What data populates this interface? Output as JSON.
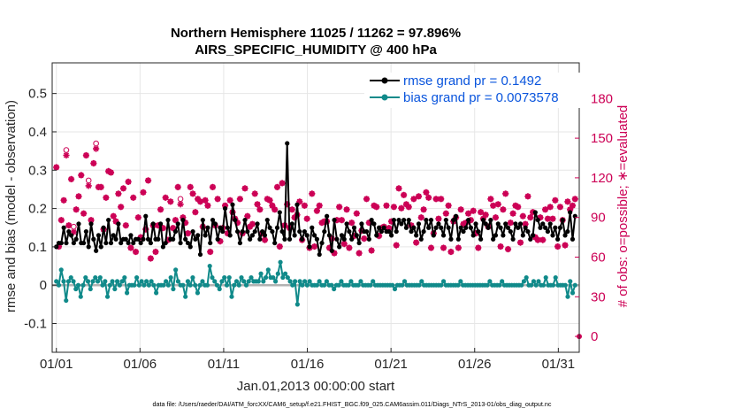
{
  "chart_data": {
    "type": "line",
    "title_line1": "Northern Hemisphere 11025 / 11262 = 97.896%",
    "title_line2": "AIRS_SPECIFIC_HUMIDITY @ 400 hPa",
    "xlabel": "Jan.01,2013 00:00:00 start",
    "ylabel_left": "rmse and bias (model - observation)",
    "ylabel_right": "# of obs: o=possible; ∗=evaluated",
    "footnote": "data file: /Users/raeder/DAI/ATM_forcXX/CAM6_setup/f.e21.FHIST_BGC.f09_025.CAM6assim.011/Diags_NTrS_2013-01/obs_diag_output.nc",
    "x_tick_labels": [
      "01/01",
      "01/06",
      "01/11",
      "01/16",
      "01/21",
      "01/26",
      "01/31"
    ],
    "x_tick_days": [
      1,
      6,
      11,
      16,
      21,
      26,
      31
    ],
    "xlim_days": [
      0.75,
      32.25
    ],
    "ylim_left": [
      -0.175,
      0.58
    ],
    "yticks_left": [
      -0.1,
      0,
      0.1,
      0.2,
      0.3,
      0.4,
      0.5
    ],
    "ytick_labels_left": [
      "-0.1",
      "0",
      "0.1",
      "0.2",
      "0.3",
      "0.4",
      "0.5"
    ],
    "ylim_right": [
      -12,
      207
    ],
    "yticks_right": [
      0,
      30,
      60,
      90,
      120,
      150,
      180
    ],
    "ytick_labels_right": [
      "0",
      "30",
      "60",
      "90",
      "120",
      "150",
      "180"
    ],
    "grid": true,
    "zero_line": true,
    "legend_position": "top-right",
    "series": [
      {
        "name": "rmse grand pr = 0.1492",
        "color": "#000000",
        "values": [
          0.1,
          0.11,
          0.11,
          0.15,
          0.11,
          0.14,
          0.13,
          0.11,
          0.12,
          0.16,
          0.11,
          0.11,
          0.14,
          0.1,
          0.16,
          0.12,
          0.09,
          0.13,
          0.1,
          0.15,
          0.11,
          0.17,
          0.11,
          0.13,
          0.12,
          0.16,
          0.11,
          0.12,
          0.12,
          0.11,
          0.13,
          0.11,
          0.12,
          0.12,
          0.11,
          0.12,
          0.18,
          0.12,
          0.11,
          0.16,
          0.12,
          0.12,
          0.16,
          0.1,
          0.11,
          0.17,
          0.12,
          0.12,
          0.14,
          0.16,
          0.11,
          0.17,
          0.12,
          0.11,
          0.1,
          0.14,
          0.12,
          0.13,
          0.08,
          0.17,
          0.13,
          0.15,
          0.11,
          0.17,
          0.16,
          0.12,
          0.15,
          0.14,
          0.2,
          0.15,
          0.13,
          0.21,
          0.17,
          0.14,
          0.11,
          0.14,
          0.17,
          0.14,
          0.12,
          0.13,
          0.14,
          0.16,
          0.12,
          0.14,
          0.13,
          0.17,
          0.15,
          0.14,
          0.11,
          0.15,
          0.19,
          0.14,
          0.12,
          0.37,
          0.12,
          0.16,
          0.13,
          0.21,
          0.14,
          0.12,
          0.14,
          0.13,
          0.1,
          0.15,
          0.13,
          0.12,
          0.08,
          0.11,
          0.14,
          0.18,
          0.13,
          0.09,
          0.17,
          0.12,
          0.1,
          0.13,
          0.12,
          0.16,
          0.14,
          0.12,
          0.15,
          0.13,
          0.11,
          0.16,
          0.14,
          0.14,
          0.12,
          0.17,
          0.16,
          0.13,
          0.15,
          0.14,
          0.15,
          0.14,
          0.14,
          0.13,
          0.17,
          0.14,
          0.17,
          0.16,
          0.17,
          0.15,
          0.17,
          0.14,
          0.15,
          0.13,
          0.16,
          0.12,
          0.14,
          0.17,
          0.15,
          0.17,
          0.13,
          0.15,
          0.16,
          0.15,
          0.13,
          0.17,
          0.15,
          0.12,
          0.17,
          0.18,
          0.12,
          0.15,
          0.14,
          0.15,
          0.17,
          0.15,
          0.13,
          0.16,
          0.14,
          0.12,
          0.17,
          0.16,
          0.15,
          0.17,
          0.12,
          0.13,
          0.16,
          0.15,
          0.13,
          0.16,
          0.15,
          0.14,
          0.12,
          0.16,
          0.15,
          0.16,
          0.13,
          0.15,
          0.14,
          0.12,
          0.13,
          0.19,
          0.17,
          0.15,
          0.16,
          0.15,
          0.14,
          0.16,
          0.13,
          0.15,
          0.12,
          0.15,
          0.17,
          0.13,
          0.14,
          0.19,
          0.12,
          0.18
        ]
      },
      {
        "name": "bias grand pr = 0.0073578",
        "color": "#108a8a",
        "values": [
          0.01,
          0.0,
          0.04,
          0.01,
          -0.04,
          0.01,
          0.02,
          0.01,
          -0.01,
          0.0,
          -0.03,
          0.0,
          0.02,
          0.01,
          -0.01,
          0.01,
          0.02,
          0.01,
          0.02,
          0.0,
          0.01,
          -0.03,
          0.0,
          0.01,
          -0.01,
          0.01,
          0.0,
          0.01,
          0.02,
          -0.02,
          0.0,
          0.0,
          0.0,
          0.02,
          0.0,
          0.01,
          0.0,
          0.01,
          0.0,
          0.01,
          0.0,
          -0.02,
          0.0,
          0.0,
          0.0,
          0.01,
          0.0,
          0.02,
          -0.01,
          0.04,
          0.01,
          0.0,
          0.0,
          -0.03,
          0.01,
          0.0,
          0.02,
          0.0,
          -0.02,
          0.0,
          0.01,
          0.0,
          0.0,
          0.05,
          0.02,
          0.01,
          0.0,
          -0.01,
          0.01,
          0.02,
          0.0,
          0.02,
          -0.03,
          0.0,
          0.01,
          0.0,
          0.02,
          0.01,
          0.0,
          0.01,
          0.02,
          0.01,
          0.01,
          0.01,
          0.03,
          0.01,
          0.02,
          0.04,
          0.02,
          0.02,
          0.01,
          0.03,
          0.06,
          0.02,
          0.03,
          0.02,
          0.01,
          0.0,
          0.01,
          -0.05,
          0.01,
          0.0,
          0.01,
          0.0,
          0.01,
          0.0,
          0.0,
          0.0,
          0.01,
          0.0,
          0.0,
          0.01,
          0.0,
          0.0,
          -0.01,
          0.0,
          0.0,
          0.01,
          0.0,
          0.0,
          0.0,
          0.01,
          0.0,
          0.0,
          0.0,
          0.01,
          0.0,
          0.0,
          0.0,
          0.0,
          0.01,
          0.0,
          0.0,
          0.0,
          0.0,
          0.0,
          0.0,
          0.0,
          0.0,
          -0.01,
          0.0,
          0.0,
          0.0,
          0.01,
          0.0,
          0.0,
          0.0,
          0.0,
          0.0,
          0.0,
          0.01,
          0.0,
          0.0,
          0.0,
          0.0,
          0.0,
          0.0,
          0.0,
          0.0,
          0.01,
          0.0,
          0.0,
          0.0,
          0.0,
          0.0,
          0.0,
          0.01,
          0.0,
          0.0,
          0.0,
          0.0,
          0.0,
          0.0,
          0.0,
          0.0,
          0.0,
          0.0,
          0.0,
          0.01,
          0.0,
          0.0,
          0.0,
          0.0,
          0.01,
          0.0,
          0.0,
          0.0,
          0.0,
          0.0,
          0.0,
          0.0,
          0.0,
          0.01,
          0.02,
          0.0,
          0.0,
          0.01,
          0.0,
          0.01,
          0.0,
          0.0,
          0.02,
          0.0,
          0.0,
          0.0,
          0.02,
          0.0,
          0.0,
          0.0,
          0.0,
          -0.03,
          0.01,
          -0.02,
          0.0
        ]
      },
      {
        "name": "obs possible",
        "marker": "circle",
        "color": "#cc0055",
        "values": [
          128,
          68,
          88,
          103,
          141,
          84,
          119,
          83,
          96,
          106,
          122,
          93,
          137,
          118,
          88,
          131,
          146,
          113,
          113,
          81,
          105,
          125,
          124,
          91,
          87,
          108,
          98,
          112,
          84,
          117,
          67,
          105,
          64,
          90,
          75,
          109,
          81,
          118,
          59,
          84,
          64,
          84,
          96,
          82,
          105,
          73,
          102,
          82,
          88,
          113,
          104,
          90,
          86,
          78,
          113,
          108,
          94,
          104,
          102,
          83,
          103,
          99,
          64,
          113,
          84,
          104,
          72,
          82,
          99,
          78,
          103,
          94,
          89,
          86,
          104,
          78,
          112,
          91,
          83,
          85,
          108,
          100,
          96,
          78,
          73,
          104,
          103,
          99,
          96,
          113,
          68,
          116,
          84,
          100,
          82,
          96,
          90,
          92,
          102,
          73,
          99,
          89,
          67,
          108,
          68,
          95,
          99,
          86,
          87,
          87,
          67,
          74,
          63,
          88,
          98,
          88,
          70,
          96,
          67,
          86,
          76,
          93,
          63,
          80,
          74,
          104,
          86,
          65,
          99,
          98,
          76,
          82,
          83,
          99,
          82,
          87,
          98,
          69,
          112,
          97,
          107,
          100,
          98,
          84,
          104,
          71,
          106,
          90,
          96,
          109,
          105,
          67,
          78,
          104,
          89,
          104,
          67,
          93,
          99,
          64,
          87,
          90,
          67,
          96,
          85,
          86,
          93,
          88,
          95,
          78,
          67,
          94,
          89,
          92,
          83,
          104,
          99,
          90,
          100,
          68,
          96,
          108,
          66,
          86,
          93,
          99,
          98,
          71,
          91,
          85,
          106,
          90,
          94,
          75,
          73,
          90,
          73,
          96,
          89,
          98,
          89,
          103,
          68,
          98,
          88,
          69,
          102,
          96,
          99,
          104
        ]
      },
      {
        "name": "obs evaluated",
        "marker": "star",
        "color": "#cc0055",
        "values": [
          128,
          68,
          88,
          103,
          137,
          84,
          119,
          79,
          96,
          106,
          122,
          93,
          137,
          114,
          88,
          131,
          142,
          113,
          113,
          81,
          105,
          125,
          124,
          91,
          87,
          108,
          98,
          112,
          84,
          117,
          67,
          105,
          64,
          90,
          75,
          109,
          81,
          118,
          59,
          84,
          64,
          84,
          96,
          82,
          105,
          73,
          102,
          82,
          88,
          113,
          100,
          90,
          86,
          78,
          113,
          108,
          94,
          104,
          102,
          83,
          103,
          99,
          64,
          113,
          84,
          104,
          72,
          82,
          99,
          78,
          103,
          94,
          89,
          86,
          104,
          78,
          112,
          91,
          83,
          85,
          108,
          100,
          96,
          78,
          73,
          104,
          103,
          99,
          96,
          113,
          68,
          116,
          84,
          100,
          82,
          96,
          90,
          92,
          102,
          73,
          99,
          89,
          67,
          108,
          68,
          95,
          99,
          86,
          87,
          87,
          67,
          74,
          63,
          88,
          98,
          88,
          70,
          96,
          67,
          86,
          76,
          93,
          63,
          80,
          74,
          104,
          86,
          65,
          99,
          98,
          76,
          82,
          83,
          99,
          82,
          87,
          98,
          69,
          112,
          97,
          107,
          100,
          98,
          84,
          104,
          71,
          106,
          90,
          96,
          109,
          105,
          67,
          78,
          104,
          89,
          104,
          67,
          93,
          99,
          64,
          87,
          90,
          67,
          96,
          85,
          86,
          93,
          88,
          95,
          78,
          67,
          94,
          89,
          92,
          83,
          104,
          99,
          90,
          100,
          68,
          96,
          108,
          66,
          86,
          93,
          99,
          98,
          71,
          91,
          85,
          106,
          90,
          94,
          75,
          73,
          90,
          73,
          96,
          89,
          98,
          89,
          103,
          68,
          98,
          88,
          69,
          102,
          96,
          99,
          104
        ]
      }
    ]
  }
}
